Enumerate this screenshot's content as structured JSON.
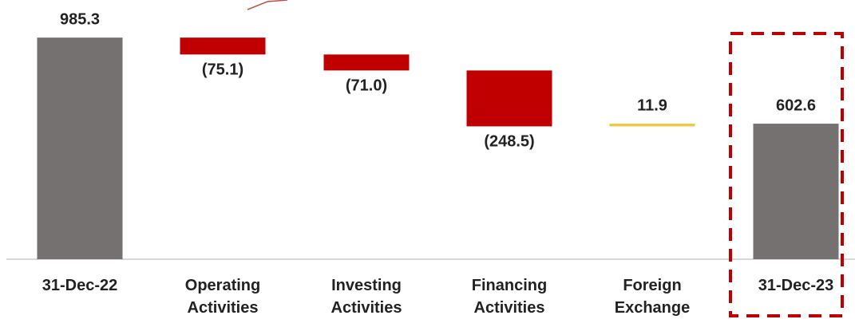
{
  "chart_data": {
    "type": "waterfall",
    "categories": [
      "31-Dec-22",
      "Operating Activities",
      "Investing Activities",
      "Financing Activities",
      "Foreign Exchange",
      "31-Dec-23"
    ],
    "values": [
      985.3,
      -75.1,
      -71.0,
      -248.5,
      11.9,
      602.6
    ],
    "value_labels": [
      "985.3",
      "(75.1)",
      "(71.0)",
      "(248.5)",
      "11.9",
      "602.6"
    ],
    "colors": [
      "#767171",
      "#c00000",
      "#c00000",
      "#c00000",
      "#f4c542",
      "#767171"
    ],
    "ylim": [
      0,
      1000
    ]
  }
}
